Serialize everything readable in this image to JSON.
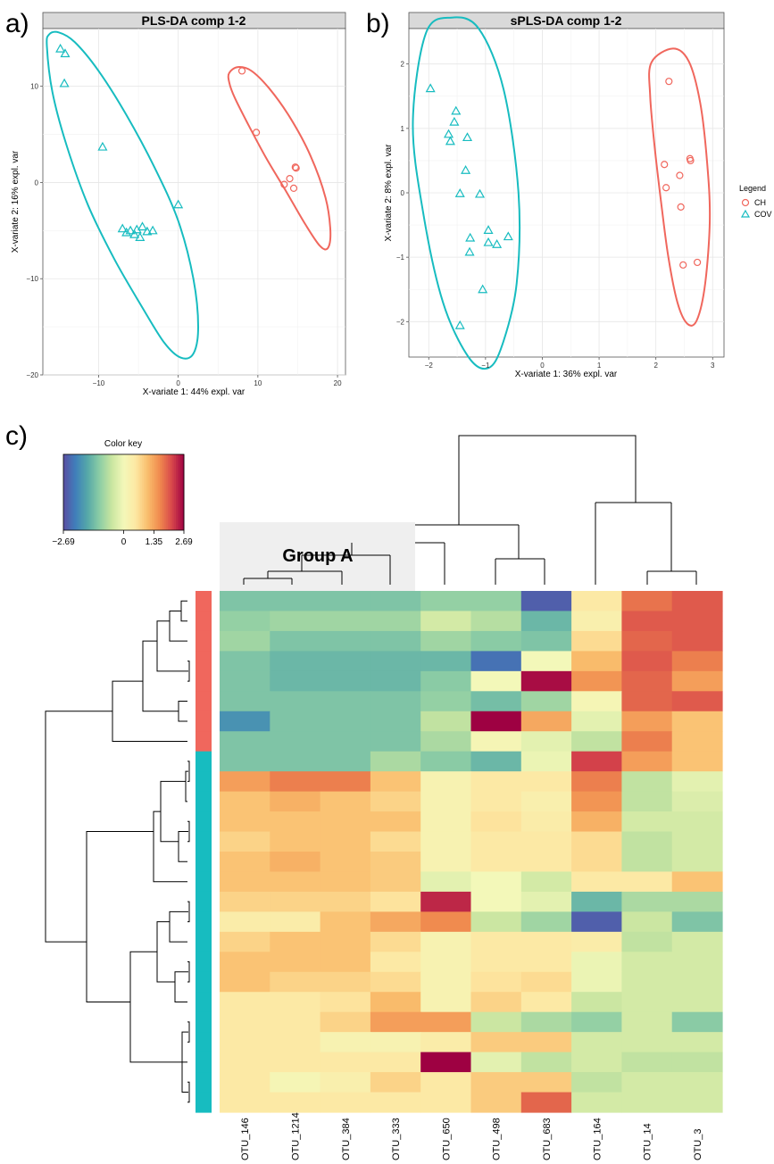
{
  "panel_labels": {
    "a": "a)",
    "b": "b)",
    "c": "c)"
  },
  "colors": {
    "ch": "#f0675d",
    "cov": "#17bcc0",
    "grid": "#e6e6e6",
    "strip": "#d9d9d9"
  },
  "legend": {
    "title": "Legend",
    "items": [
      {
        "label": "CH",
        "marker": "circle",
        "color": "#f0675d"
      },
      {
        "label": "COV",
        "marker": "triangle",
        "color": "#17bcc0"
      }
    ]
  },
  "chart_data": [
    {
      "type": "scatter",
      "title": "PLS-DA comp 1-2",
      "xlabel": "X-variate 1: 44% expl. var",
      "ylabel": "X-variate 2: 16% expl. var",
      "xlim": [
        -17,
        21
      ],
      "ylim": [
        -20,
        16
      ],
      "xticks": [
        -10,
        0,
        10,
        20
      ],
      "yticks": [
        -20,
        -10,
        0,
        10
      ],
      "grid": true,
      "series": [
        {
          "name": "CH",
          "marker": "circle",
          "points": [
            [
              8,
              11.6
            ],
            [
              9.8,
              5.2
            ],
            [
              14.8,
              1.5
            ],
            [
              14.7,
              1.6
            ],
            [
              13.3,
              -0.2
            ],
            [
              14.0,
              0.4
            ],
            [
              14.5,
              -0.6
            ]
          ],
          "ellipse": [
            [
              6.4,
              11.4
            ],
            [
              7.5,
              12
            ],
            [
              9.2,
              11.6
            ],
            [
              11.4,
              9.8
            ],
            [
              14,
              6.8
            ],
            [
              16.6,
              2.8
            ],
            [
              18.5,
              -1.6
            ],
            [
              19.1,
              -5
            ],
            [
              18.8,
              -6.8
            ],
            [
              17.8,
              -6.6
            ],
            [
              16,
              -4.4
            ],
            [
              13.6,
              -1
            ],
            [
              11,
              2.6
            ],
            [
              8.8,
              6
            ],
            [
              7.1,
              8.8
            ],
            [
              6.4,
              10.4
            ],
            [
              6.4,
              11.4
            ]
          ]
        },
        {
          "name": "COV",
          "marker": "triangle",
          "points": [
            [
              -14.8,
              13.9
            ],
            [
              -14.2,
              13.4
            ],
            [
              -14.3,
              10.3
            ],
            [
              -9.5,
              3.7
            ],
            [
              -7,
              -4.8
            ],
            [
              -6.5,
              -5.2
            ],
            [
              -6.0,
              -5.0
            ],
            [
              -5.5,
              -5.4
            ],
            [
              -5.2,
              -4.9
            ],
            [
              -4.5,
              -4.6
            ],
            [
              -4.8,
              -5.7
            ],
            [
              -3.9,
              -5.1
            ],
            [
              -3.2,
              -5.0
            ],
            [
              0.0,
              -2.3
            ]
          ],
          "ellipse": [
            [
              -16.5,
              14.2
            ],
            [
              -16.2,
              15.4
            ],
            [
              -15,
              15.6
            ],
            [
              -13,
              14.6
            ],
            [
              -10,
              11.6
            ],
            [
              -6.5,
              7
            ],
            [
              -3,
              1.6
            ],
            [
              0,
              -4
            ],
            [
              1.9,
              -10
            ],
            [
              2.5,
              -15
            ],
            [
              1.9,
              -17.8
            ],
            [
              0.3,
              -18.2
            ],
            [
              -1.8,
              -16.6
            ],
            [
              -4.5,
              -13
            ],
            [
              -8,
              -8
            ],
            [
              -11.3,
              -2.4
            ],
            [
              -14,
              3.8
            ],
            [
              -15.8,
              9.4
            ],
            [
              -16.5,
              14.2
            ]
          ]
        }
      ]
    },
    {
      "type": "scatter",
      "title": "sPLS-DA comp 1-2",
      "xlabel": "X-variate 1: 36% expl. var",
      "ylabel": "X-variate 2: 8% expl. var",
      "xlim": [
        -2.35,
        3.2
      ],
      "ylim": [
        -2.55,
        2.55
      ],
      "xticks": [
        -2,
        -1,
        0,
        1,
        2,
        3
      ],
      "yticks": [
        -2,
        -1,
        0,
        1,
        2
      ],
      "grid": true,
      "series": [
        {
          "name": "CH",
          "marker": "circle",
          "points": [
            [
              2.23,
              1.73
            ],
            [
              2.15,
              0.44
            ],
            [
              2.6,
              0.53
            ],
            [
              2.61,
              0.5
            ],
            [
              2.42,
              0.27
            ],
            [
              2.18,
              0.08
            ],
            [
              2.44,
              -0.22
            ],
            [
              2.73,
              -1.08
            ],
            [
              2.48,
              -1.12
            ]
          ],
          "ellipse": [
            [
              1.92,
              2.02
            ],
            [
              2.3,
              2.24
            ],
            [
              2.58,
              2.04
            ],
            [
              2.78,
              1.4
            ],
            [
              2.9,
              0.5
            ],
            [
              2.95,
              -0.4
            ],
            [
              2.87,
              -1.4
            ],
            [
              2.72,
              -1.98
            ],
            [
              2.55,
              -2.03
            ],
            [
              2.38,
              -1.7
            ],
            [
              2.22,
              -1
            ],
            [
              2.1,
              -0.2
            ],
            [
              1.98,
              0.7
            ],
            [
              1.9,
              1.5
            ],
            [
              1.92,
              2.02
            ]
          ]
        },
        {
          "name": "COV",
          "marker": "triangle",
          "points": [
            [
              -1.97,
              1.62
            ],
            [
              -1.52,
              1.27
            ],
            [
              -1.55,
              1.1
            ],
            [
              -1.65,
              0.91
            ],
            [
              -1.62,
              0.8
            ],
            [
              -1.32,
              0.86
            ],
            [
              -1.35,
              0.35
            ],
            [
              -1.1,
              -0.02
            ],
            [
              -1.45,
              -0.01
            ],
            [
              -1.27,
              -0.7
            ],
            [
              -1.28,
              -0.92
            ],
            [
              -0.95,
              -0.58
            ],
            [
              -0.95,
              -0.77
            ],
            [
              -0.8,
              -0.8
            ],
            [
              -0.6,
              -0.68
            ],
            [
              -1.05,
              -1.5
            ],
            [
              -1.45,
              -2.06
            ]
          ],
          "ellipse": [
            [
              -2.05,
              2.48
            ],
            [
              -1.6,
              2.72
            ],
            [
              -1.12,
              2.55
            ],
            [
              -0.68,
              1.6
            ],
            [
              -0.42,
              0
            ],
            [
              -0.45,
              -1.4
            ],
            [
              -0.7,
              -2.35
            ],
            [
              -0.95,
              -2.72
            ],
            [
              -1.3,
              -2.55
            ],
            [
              -1.75,
              -1.7
            ],
            [
              -2.1,
              -0.3
            ],
            [
              -2.28,
              1.1
            ],
            [
              -2.05,
              2.48
            ]
          ]
        }
      ]
    },
    {
      "type": "heatmap",
      "columns": [
        "OTU_146",
        "OTU_1214",
        "OTU_384",
        "OTU_333",
        "OTU_650",
        "OTU_498",
        "OTU_683",
        "OTU_164",
        "OTU_14",
        "OTU_3"
      ],
      "row_groups": [
        "CH",
        "CH",
        "CH",
        "CH",
        "CH",
        "CH",
        "CH",
        "CH",
        "COV",
        "COV",
        "COV",
        "COV",
        "COV",
        "COV",
        "COV",
        "COV",
        "COV",
        "COV",
        "COV",
        "COV",
        "COV",
        "COV",
        "COV",
        "COV",
        "COV",
        "COV"
      ],
      "values": [
        [
          -1.2,
          -1.2,
          -1.2,
          -1.2,
          -1.0,
          -1.0,
          -2.5,
          0.5,
          1.8,
          2.0
        ],
        [
          -1.0,
          -0.9,
          -0.9,
          -0.9,
          -0.4,
          -0.7,
          -1.4,
          0.3,
          2.0,
          2.0
        ],
        [
          -0.9,
          -1.2,
          -1.2,
          -1.2,
          -0.9,
          -1.1,
          -1.2,
          0.7,
          1.9,
          2.0
        ],
        [
          -1.2,
          -1.4,
          -1.4,
          -1.4,
          -1.4,
          -2.3,
          0.0,
          1.1,
          2.0,
          1.7
        ],
        [
          -1.2,
          -1.4,
          -1.4,
          -1.4,
          -1.1,
          0.0,
          2.6,
          1.5,
          1.9,
          1.4
        ],
        [
          -1.2,
          -1.2,
          -1.2,
          -1.2,
          -1.0,
          -1.3,
          -0.9,
          0.1,
          1.9,
          2.0
        ],
        [
          -1.9,
          -1.2,
          -1.2,
          -1.2,
          -0.6,
          2.69,
          1.3,
          -0.2,
          1.4,
          1.0
        ],
        [
          -1.2,
          -1.2,
          -1.2,
          -1.2,
          -0.8,
          0.1,
          -0.2,
          -0.6,
          1.7,
          1.0
        ],
        [
          -1.2,
          -1.2,
          -1.2,
          -0.8,
          -1.1,
          -1.4,
          -0.1,
          2.2,
          1.4,
          1.0
        ],
        [
          1.4,
          1.7,
          1.7,
          1.0,
          0.2,
          0.5,
          0.5,
          1.7,
          -0.6,
          -0.2
        ],
        [
          1.0,
          1.2,
          1.0,
          0.8,
          0.2,
          0.5,
          0.3,
          1.5,
          -0.6,
          -0.3
        ],
        [
          1.0,
          1.0,
          1.0,
          1.0,
          0.2,
          0.6,
          0.4,
          1.2,
          -0.4,
          -0.4
        ],
        [
          0.8,
          1.0,
          1.0,
          0.7,
          0.2,
          0.5,
          0.5,
          0.7,
          -0.6,
          -0.4
        ],
        [
          1.0,
          1.2,
          1.0,
          0.9,
          0.2,
          0.5,
          0.5,
          0.7,
          -0.6,
          -0.4
        ],
        [
          1.0,
          1.0,
          1.0,
          0.9,
          -0.2,
          0.0,
          -0.4,
          0.5,
          0.5,
          1.0
        ],
        [
          0.8,
          0.8,
          0.8,
          0.6,
          2.4,
          0.0,
          -0.2,
          -1.4,
          -0.8,
          -0.8
        ],
        [
          0.4,
          0.4,
          1.0,
          1.3,
          1.6,
          -0.5,
          -0.9,
          -2.5,
          -0.5,
          -1.2
        ],
        [
          0.8,
          1.0,
          1.0,
          0.7,
          0.2,
          0.5,
          0.5,
          0.4,
          -0.6,
          -0.4
        ],
        [
          1.0,
          1.0,
          1.0,
          0.5,
          0.2,
          0.5,
          0.5,
          -0.1,
          -0.4,
          -0.4
        ],
        [
          1.0,
          0.8,
          0.8,
          0.7,
          0.2,
          0.6,
          0.7,
          -0.1,
          -0.4,
          -0.4
        ],
        [
          0.5,
          0.5,
          0.6,
          1.1,
          0.2,
          0.8,
          0.5,
          -0.5,
          -0.4,
          -0.4
        ],
        [
          0.5,
          0.5,
          0.8,
          1.4,
          1.4,
          -0.5,
          -0.8,
          -1.0,
          -0.4,
          -1.1
        ],
        [
          0.5,
          0.5,
          0.2,
          0.2,
          0.4,
          0.9,
          0.9,
          -0.4,
          -0.4,
          -0.4
        ],
        [
          0.5,
          0.5,
          0.5,
          0.5,
          2.69,
          -0.2,
          -0.6,
          -0.4,
          -0.6,
          -0.6
        ],
        [
          0.5,
          0.1,
          0.3,
          0.8,
          0.5,
          0.9,
          0.9,
          -0.6,
          -0.4,
          -0.4
        ],
        [
          0.5,
          0.5,
          0.5,
          0.5,
          0.5,
          0.9,
          1.9,
          -0.4,
          -0.4,
          -0.4
        ]
      ],
      "color_key": {
        "title": "Color key",
        "min": -2.69,
        "max": 2.69,
        "tick_labels": [
          "-2.69",
          "0",
          "1.35",
          "2.69"
        ],
        "tick_values": [
          -2.69,
          0,
          1.35,
          2.69
        ],
        "palette": [
          "#5a4ea2",
          "#3f7fbb",
          "#55a8a8",
          "#8ccda5",
          "#c8e5a0",
          "#f3f8b9",
          "#fde8a3",
          "#f9bd6c",
          "#f08a4e",
          "#d8474b",
          "#9e0142"
        ]
      },
      "annotation": "Group A"
    }
  ]
}
